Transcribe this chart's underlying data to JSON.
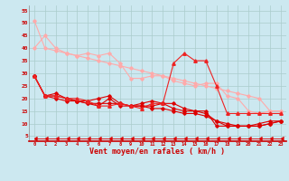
{
  "title": "",
  "xlabel": "Vent moyen/en rafales ( km/h )",
  "ylabel": "",
  "background_color": "#cce8f0",
  "grid_color": "#aacccc",
  "x_values": [
    0,
    1,
    2,
    3,
    4,
    5,
    6,
    7,
    8,
    9,
    10,
    11,
    12,
    13,
    14,
    15,
    16,
    17,
    18,
    19,
    20,
    21,
    22,
    23
  ],
  "ylim": [
    3,
    57
  ],
  "xlim": [
    -0.5,
    23.5
  ],
  "yticks": [
    5,
    10,
    15,
    20,
    25,
    30,
    35,
    40,
    45,
    50,
    55
  ],
  "line_series": [
    {
      "y": [
        51,
        40,
        39,
        38,
        37,
        36,
        35,
        34,
        33,
        32,
        31,
        30,
        29,
        28,
        27,
        26,
        25,
        24,
        23,
        22,
        21,
        20,
        15,
        15
      ],
      "color": "#ffaaaa",
      "marker": "D",
      "lw": 0.8,
      "ms": 1.8
    },
    {
      "y": [
        40,
        45,
        40,
        38,
        37,
        38,
        37,
        38,
        34,
        28,
        28,
        29,
        29,
        27,
        26,
        25,
        26,
        26,
        21,
        20,
        15,
        14,
        15,
        15
      ],
      "color": "#ffaaaa",
      "marker": "D",
      "lw": 0.8,
      "ms": 1.8
    },
    {
      "y": [
        29,
        21,
        22,
        20,
        19,
        19,
        20,
        21,
        18,
        17,
        18,
        19,
        18,
        18,
        16,
        15,
        15,
        9,
        9,
        9,
        9,
        10,
        11,
        11
      ],
      "color": "#dd0000",
      "marker": "D",
      "lw": 0.8,
      "ms": 1.8
    },
    {
      "y": [
        29,
        21,
        21,
        20,
        19,
        18,
        17,
        20,
        17,
        17,
        17,
        17,
        18,
        16,
        15,
        15,
        14,
        11,
        9,
        9,
        9,
        9,
        10,
        11
      ],
      "color": "#dd0000",
      "marker": "D",
      "lw": 0.8,
      "ms": 1.8
    },
    {
      "y": [
        29,
        21,
        20,
        19,
        19,
        18,
        18,
        18,
        18,
        17,
        17,
        16,
        16,
        15,
        14,
        14,
        13,
        11,
        10,
        9,
        9,
        9,
        10,
        11
      ],
      "color": "#dd0000",
      "marker": "D",
      "lw": 0.8,
      "ms": 1.8
    },
    {
      "y": [
        29,
        21,
        21,
        20,
        20,
        19,
        17,
        17,
        18,
        17,
        16,
        18,
        18,
        34,
        38,
        35,
        35,
        25,
        14,
        14,
        14,
        14,
        14,
        14
      ],
      "color": "#ee2222",
      "marker": "^",
      "lw": 0.8,
      "ms": 2.5
    },
    {
      "y": [
        4,
        4,
        4,
        4,
        4,
        4,
        4,
        4,
        4,
        4,
        4,
        4,
        4,
        4,
        4,
        4,
        4,
        4,
        4,
        4,
        4,
        4,
        4,
        4
      ],
      "color": "#dd0000",
      "marker": 4,
      "lw": 0.6,
      "ms": 2.5
    }
  ]
}
